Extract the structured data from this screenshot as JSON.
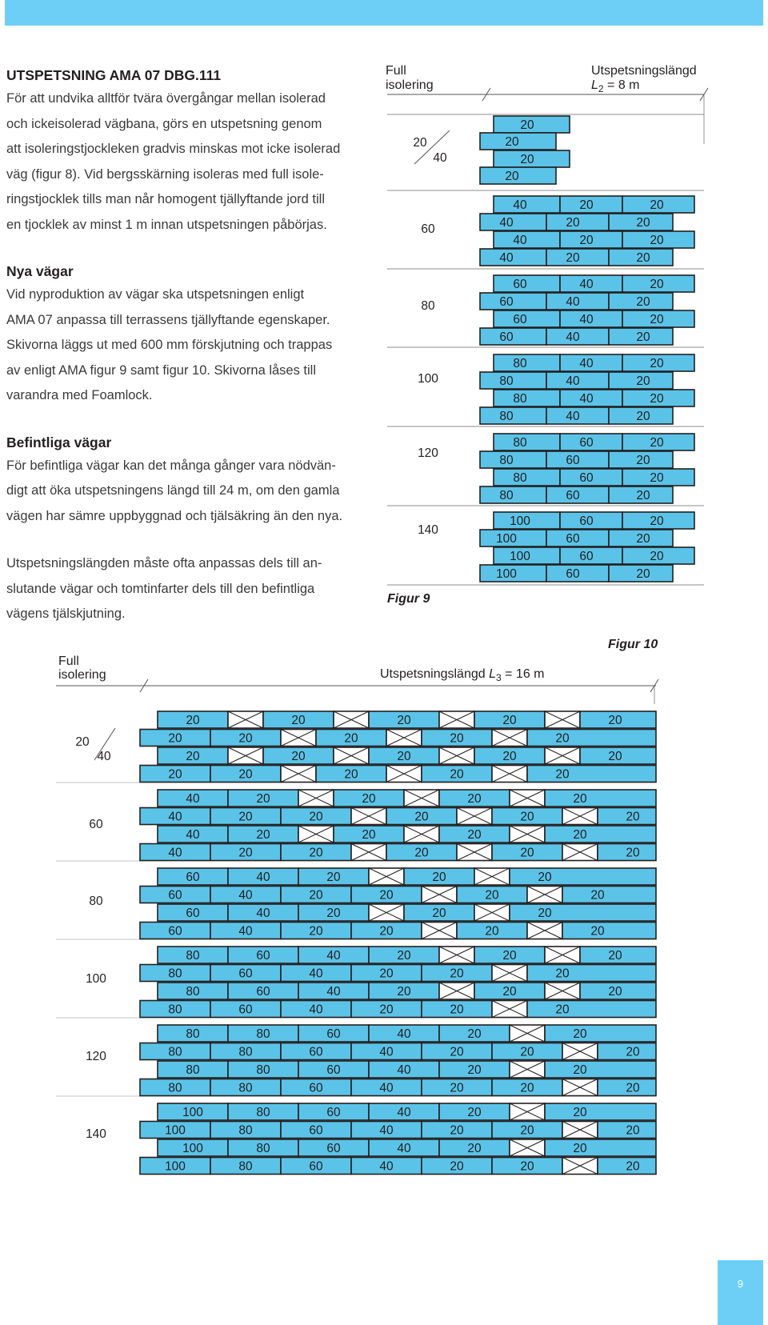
{
  "left_column": {
    "heading": "UTSPETSNING AMA 07 DBG.111",
    "intro_lines": [
      "För att undvika alltför tvära övergångar mellan isolerad",
      "och ickeisolerad vägbana, görs en utspetsning genom",
      "att isoleringstjockleken gradvis minskas mot icke isolerad",
      "väg (figur 8). Vid bergsskärning isoleras med full isole-",
      "ringstjocklek tills man når homogent tjällyftande jord till",
      "en tjocklek av minst 1 m innan utspetsningen påbörjas."
    ],
    "section1_title": "Nya vägar",
    "section1_lines": [
      "Vid nyproduktion av vägar ska utspetsningen enligt",
      "AMA 07 anpassa till terrassens tjällyftande egenskaper.",
      "Skivorna läggs ut med 600 mm förskjutning och trappas",
      "av enligt AMA figur 9 samt figur 10. Skivorna låses till",
      "varandra med Foamlock."
    ],
    "section2_title": "Befintliga vägar",
    "section2_lines": [
      "För befintliga vägar kan det många gånger vara nödvän-",
      "digt att öka utspetsningens längd till 24 m, om den gamla",
      "vägen har sämre uppbyggnad och tjälsäkring än den nya."
    ],
    "section3_lines": [
      "Utspetsningslängden måste ofta anpassas dels till an-",
      "slutande vägar och tomtinfarter dels till den befintliga",
      "vägens tjälskjutning."
    ]
  },
  "figure9": {
    "caption": "Figur 9",
    "full_label_1": "Full",
    "full_label_2": "isolering",
    "length_label": "Utspetsningslängd",
    "length_symbol": "L",
    "length_sub": "2",
    "length_value": " = 8 m",
    "group_labels": [
      "60",
      "80",
      "100",
      "120",
      "140"
    ],
    "first_label_a": "20",
    "first_label_b": "40",
    "first_group_values": [
      "20",
      "20",
      "20",
      "20"
    ],
    "groups": [
      {
        "values": [
          [
            "40",
            "20",
            "20"
          ],
          [
            "40",
            "20",
            "20"
          ],
          [
            "40",
            "20",
            "20"
          ],
          [
            "40",
            "20",
            "20"
          ]
        ]
      },
      {
        "values": [
          [
            "60",
            "40",
            "20"
          ],
          [
            "60",
            "40",
            "20"
          ],
          [
            "60",
            "40",
            "20"
          ],
          [
            "60",
            "40",
            "20"
          ]
        ]
      },
      {
        "values": [
          [
            "80",
            "40",
            "20"
          ],
          [
            "80",
            "40",
            "20"
          ],
          [
            "80",
            "40",
            "20"
          ],
          [
            "80",
            "40",
            "20"
          ]
        ]
      },
      {
        "values": [
          [
            "80",
            "60",
            "20"
          ],
          [
            "80",
            "60",
            "20"
          ],
          [
            "80",
            "60",
            "20"
          ],
          [
            "80",
            "60",
            "20"
          ]
        ]
      },
      {
        "values": [
          [
            "100",
            "60",
            "20"
          ],
          [
            "100",
            "60",
            "20"
          ],
          [
            "100",
            "60",
            "20"
          ],
          [
            "100",
            "60",
            "20"
          ]
        ]
      }
    ]
  },
  "figure10": {
    "caption": "Figur 10",
    "full_label_1": "Full",
    "full_label_2": "isolering",
    "length_label": "Utspetsningslängd",
    "length_symbol": "L",
    "length_sub": "3",
    "length_value": " = 16 m",
    "first_label_a": "20",
    "first_label_b": "40",
    "group_labels": [
      "60",
      "80",
      "100",
      "120",
      "140"
    ],
    "groups": [
      {
        "rows": [
          [
            "20",
            "X",
            "20",
            "X",
            "20",
            "X",
            "20",
            "X",
            "20"
          ],
          [
            "20",
            "20",
            "X",
            "20",
            "X",
            "20",
            "X",
            "20"
          ],
          [
            "20",
            "X",
            "20",
            "X",
            "20",
            "X",
            "20",
            "X",
            "20"
          ],
          [
            "20",
            "20",
            "X",
            "20",
            "X",
            "20",
            "X",
            "20"
          ]
        ]
      },
      {
        "rows": [
          [
            "40",
            "20",
            "X",
            "20",
            "X",
            "20",
            "X",
            "20"
          ],
          [
            "40",
            "20",
            "20",
            "X",
            "20",
            "X",
            "20",
            "X",
            "20"
          ],
          [
            "40",
            "20",
            "X",
            "20",
            "X",
            "20",
            "X",
            "20"
          ],
          [
            "40",
            "20",
            "20",
            "X",
            "20",
            "X",
            "20",
            "X",
            "20"
          ]
        ]
      },
      {
        "rows": [
          [
            "60",
            "40",
            "20",
            "X",
            "20",
            "X",
            "20"
          ],
          [
            "60",
            "40",
            "20",
            "20",
            "X",
            "20",
            "X",
            "20"
          ],
          [
            "60",
            "40",
            "20",
            "X",
            "20",
            "X",
            "20"
          ],
          [
            "60",
            "40",
            "20",
            "20",
            "X",
            "20",
            "X",
            "20"
          ]
        ]
      },
      {
        "rows": [
          [
            "80",
            "60",
            "40",
            "20",
            "X",
            "20",
            "X",
            "20"
          ],
          [
            "80",
            "60",
            "40",
            "20",
            "20",
            "X",
            "20"
          ],
          [
            "80",
            "60",
            "40",
            "20",
            "X",
            "20",
            "X",
            "20"
          ],
          [
            "80",
            "60",
            "40",
            "20",
            "20",
            "X",
            "20"
          ]
        ]
      },
      {
        "rows": [
          [
            "80",
            "80",
            "60",
            "40",
            "20",
            "X",
            "20"
          ],
          [
            "80",
            "80",
            "60",
            "40",
            "20",
            "20",
            "X",
            "20"
          ],
          [
            "80",
            "80",
            "60",
            "40",
            "20",
            "X",
            "20"
          ],
          [
            "80",
            "80",
            "60",
            "40",
            "20",
            "20",
            "X",
            "20"
          ]
        ]
      },
      {
        "rows": [
          [
            "100",
            "80",
            "60",
            "40",
            "20",
            "X",
            "20"
          ],
          [
            "100",
            "80",
            "60",
            "40",
            "20",
            "20",
            "X",
            "20"
          ],
          [
            "100",
            "80",
            "60",
            "40",
            "20",
            "X",
            "20"
          ],
          [
            "100",
            "80",
            "60",
            "40",
            "20",
            "20",
            "X",
            "20"
          ]
        ]
      }
    ]
  },
  "page_number": "9",
  "colors": {
    "accent": "#6dcff6",
    "board": "#5bc3e8",
    "outline": "#231f20"
  }
}
